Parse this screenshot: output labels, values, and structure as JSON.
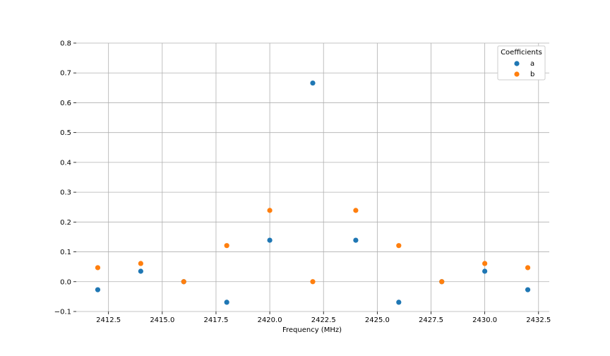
{
  "chart_data": {
    "type": "scatter",
    "title": "",
    "xlabel": "Frequency (MHz)",
    "ylabel": "",
    "xlim": [
      2411.0,
      2433.0
    ],
    "ylim": [
      -0.1,
      0.8
    ],
    "xticks": [
      2412.5,
      2415.0,
      2417.5,
      2420.0,
      2422.5,
      2425.0,
      2427.5,
      2430.0,
      2432.5
    ],
    "xtick_labels": [
      "2412.5",
      "2415.0",
      "2417.5",
      "2420.0",
      "2422.5",
      "2425.0",
      "2427.5",
      "2430.0",
      "2432.5"
    ],
    "yticks": [
      -0.1,
      0.0,
      0.1,
      0.2,
      0.3,
      0.4,
      0.5,
      0.6,
      0.7,
      0.8
    ],
    "ytick_labels": [
      "−0.1",
      "0.0",
      "0.1",
      "0.2",
      "0.3",
      "0.4",
      "0.5",
      "0.6",
      "0.7",
      "0.8"
    ],
    "grid": true,
    "legend": {
      "title": "Coefficients",
      "placement": "top-right"
    },
    "x": [
      2412,
      2414,
      2416,
      2418,
      2420,
      2422,
      2424,
      2426,
      2428,
      2430,
      2432
    ],
    "series": [
      {
        "name": "a",
        "color": "#1f77b4",
        "values": [
          -0.027,
          0.035,
          0.0,
          -0.069,
          0.139,
          0.666,
          0.139,
          -0.069,
          0.0,
          0.035,
          -0.027
        ]
      },
      {
        "name": "b",
        "color": "#ff7f0e",
        "values": [
          0.047,
          0.061,
          0.0,
          0.121,
          0.239,
          0.0,
          0.239,
          0.121,
          0.0,
          0.061,
          0.047
        ]
      }
    ]
  }
}
